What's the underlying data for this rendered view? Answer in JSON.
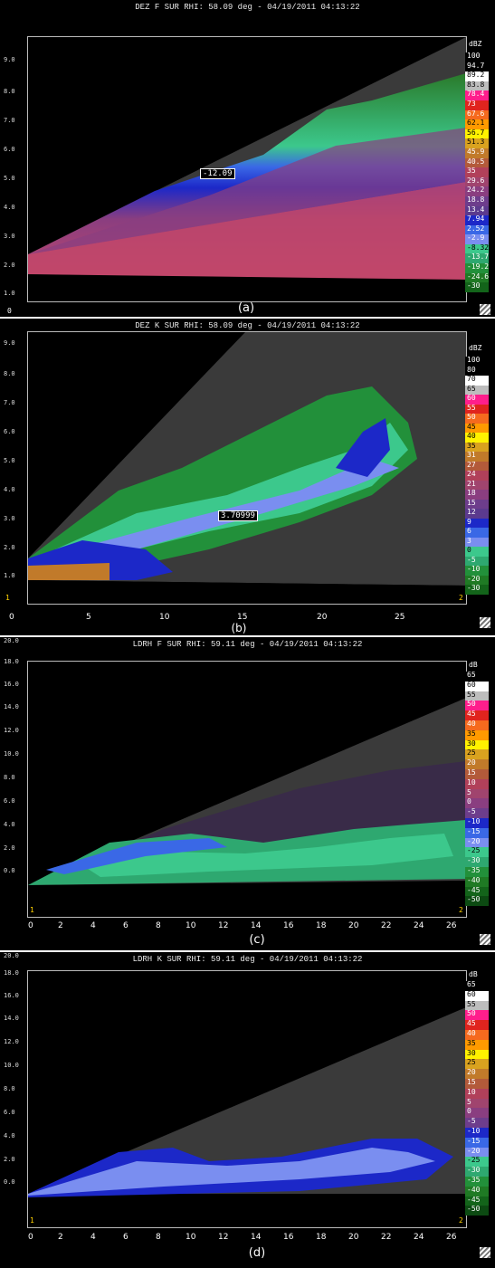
{
  "panels": [
    {
      "id": "a",
      "title": "DEZ F SUR  RHI: 58.09 deg  -  04/19/2011 04:13:22",
      "caption": "(a)",
      "unit": "dBZ",
      "y_ticks": [
        "1.0",
        "2.0",
        "3.0",
        "4.0",
        "5.0",
        "6.0",
        "7.0",
        "8.0",
        "9.0"
      ],
      "x_ticks": [],
      "probe_value": "-12.09",
      "corner_left": "0",
      "corner_right": "",
      "colorbar": [
        {
          "label": "100",
          "bg": "#000000",
          "fg": "#ffffff"
        },
        {
          "label": "94.7",
          "bg": "#000000",
          "fg": "#ffffff"
        },
        {
          "label": "89.2",
          "bg": "#ffffff",
          "fg": "#000000"
        },
        {
          "label": "83.8",
          "bg": "#bdbdbd",
          "fg": "#000000"
        },
        {
          "label": "78.4",
          "bg": "#ff1e8c",
          "fg": "#ffffff"
        },
        {
          "label": "73",
          "bg": "#e0241e",
          "fg": "#ffffff"
        },
        {
          "label": "67.6",
          "bg": "#f56a1e",
          "fg": "#ffffff"
        },
        {
          "label": "62.1",
          "bg": "#ff9a00",
          "fg": "#000000"
        },
        {
          "label": "56.7",
          "bg": "#fff200",
          "fg": "#000000"
        },
        {
          "label": "51.3",
          "bg": "#d9a21f",
          "fg": "#000000"
        },
        {
          "label": "45.9",
          "bg": "#c17a2a",
          "fg": "#ffffff"
        },
        {
          "label": "40.5",
          "bg": "#b35a3a",
          "fg": "#ffffff"
        },
        {
          "label": "35",
          "bg": "#b1405a",
          "fg": "#ffffff"
        },
        {
          "label": "29.6",
          "bg": "#a0446e",
          "fg": "#ffffff"
        },
        {
          "label": "24.2",
          "bg": "#8a3e80",
          "fg": "#ffffff"
        },
        {
          "label": "18.8",
          "bg": "#6d3d8c",
          "fg": "#ffffff"
        },
        {
          "label": "13.4",
          "bg": "#5b3a8e",
          "fg": "#ffffff"
        },
        {
          "label": "7.94",
          "bg": "#1c28c8",
          "fg": "#ffffff"
        },
        {
          "label": "2.52",
          "bg": "#3a68e6",
          "fg": "#ffffff"
        },
        {
          "label": "-2.9",
          "bg": "#7a8ef0",
          "fg": "#ffffff"
        },
        {
          "label": "-8.32",
          "bg": "#3cc88c",
          "fg": "#000000"
        },
        {
          "label": "-13.7",
          "bg": "#2ea870",
          "fg": "#ffffff"
        },
        {
          "label": "-19.2",
          "bg": "#22903a",
          "fg": "#ffffff"
        },
        {
          "label": "-24.6",
          "bg": "#1f7a24",
          "fg": "#ffffff"
        },
        {
          "label": "-30",
          "bg": "#13641a",
          "fg": "#ffffff"
        }
      ]
    },
    {
      "id": "b",
      "title": "DEZ K SUR  RHI: 58.09 deg  -  04/19/2011 04:13:22",
      "caption": "(b)",
      "unit": "dBZ",
      "y_ticks": [
        "1.0",
        "2.0",
        "3.0",
        "4.0",
        "5.0",
        "6.0",
        "7.0",
        "8.0",
        "9.0"
      ],
      "x_ticks": [
        "0",
        "5",
        "10",
        "15",
        "20",
        "25"
      ],
      "probe_value": "3.70999",
      "corner_left": "1",
      "corner_right": "2",
      "colorbar": [
        {
          "label": "100",
          "bg": "#000000",
          "fg": "#ffffff"
        },
        {
          "label": "80",
          "bg": "#000000",
          "fg": "#ffffff"
        },
        {
          "label": "70",
          "bg": "#ffffff",
          "fg": "#000000"
        },
        {
          "label": "65",
          "bg": "#bdbdbd",
          "fg": "#000000"
        },
        {
          "label": "60",
          "bg": "#ff1e8c",
          "fg": "#ffffff"
        },
        {
          "label": "55",
          "bg": "#e0241e",
          "fg": "#ffffff"
        },
        {
          "label": "50",
          "bg": "#f56a1e",
          "fg": "#ffffff"
        },
        {
          "label": "45",
          "bg": "#ff9a00",
          "fg": "#000000"
        },
        {
          "label": "40",
          "bg": "#fff200",
          "fg": "#000000"
        },
        {
          "label": "35",
          "bg": "#d9a21f",
          "fg": "#000000"
        },
        {
          "label": "31",
          "bg": "#c17a2a",
          "fg": "#ffffff"
        },
        {
          "label": "27",
          "bg": "#b35a3a",
          "fg": "#ffffff"
        },
        {
          "label": "24",
          "bg": "#b1405a",
          "fg": "#ffffff"
        },
        {
          "label": "21",
          "bg": "#a0446e",
          "fg": "#ffffff"
        },
        {
          "label": "18",
          "bg": "#8a3e80",
          "fg": "#ffffff"
        },
        {
          "label": "15",
          "bg": "#6d3d8c",
          "fg": "#ffffff"
        },
        {
          "label": "12",
          "bg": "#5b3a8e",
          "fg": "#ffffff"
        },
        {
          "label": "9",
          "bg": "#1c28c8",
          "fg": "#ffffff"
        },
        {
          "label": "6",
          "bg": "#3a68e6",
          "fg": "#ffffff"
        },
        {
          "label": "3",
          "bg": "#7a8ef0",
          "fg": "#ffffff"
        },
        {
          "label": "0",
          "bg": "#3cc88c",
          "fg": "#000000"
        },
        {
          "label": "-5",
          "bg": "#2ea870",
          "fg": "#ffffff"
        },
        {
          "label": "-10",
          "bg": "#22903a",
          "fg": "#ffffff"
        },
        {
          "label": "-20",
          "bg": "#1f7a24",
          "fg": "#ffffff"
        },
        {
          "label": "-30",
          "bg": "#13641a",
          "fg": "#ffffff"
        }
      ]
    },
    {
      "id": "c",
      "title": "LDRH F SUR  RHI: 59.11 deg  -  04/19/2011 04:13:22",
      "caption": "(c)",
      "unit": "dB",
      "y_ticks": [
        "0.0",
        "2.0",
        "4.0",
        "6.0",
        "8.0",
        "10.0",
        "12.0",
        "14.0",
        "16.0",
        "18.0",
        "20.0"
      ],
      "x_ticks": [
        "0",
        "2",
        "4",
        "6",
        "8",
        "10",
        "12",
        "14",
        "16",
        "18",
        "20",
        "22",
        "24",
        "26"
      ],
      "probe_value": "",
      "corner_left": "1",
      "corner_right": "2",
      "colorbar": [
        {
          "label": "65",
          "bg": "#000000",
          "fg": "#ffffff"
        },
        {
          "label": "60",
          "bg": "#ffffff",
          "fg": "#000000"
        },
        {
          "label": "55",
          "bg": "#bdbdbd",
          "fg": "#000000"
        },
        {
          "label": "50",
          "bg": "#ff1e8c",
          "fg": "#ffffff"
        },
        {
          "label": "45",
          "bg": "#e0241e",
          "fg": "#ffffff"
        },
        {
          "label": "40",
          "bg": "#f56a1e",
          "fg": "#ffffff"
        },
        {
          "label": "35",
          "bg": "#ff9a00",
          "fg": "#000000"
        },
        {
          "label": "30",
          "bg": "#fff200",
          "fg": "#000000"
        },
        {
          "label": "25",
          "bg": "#d9a21f",
          "fg": "#000000"
        },
        {
          "label": "20",
          "bg": "#c17a2a",
          "fg": "#ffffff"
        },
        {
          "label": "15",
          "bg": "#b35a3a",
          "fg": "#ffffff"
        },
        {
          "label": "10",
          "bg": "#b1405a",
          "fg": "#ffffff"
        },
        {
          "label": "5",
          "bg": "#a0446e",
          "fg": "#ffffff"
        },
        {
          "label": "0",
          "bg": "#8a3e80",
          "fg": "#ffffff"
        },
        {
          "label": "-5",
          "bg": "#6d3d8c",
          "fg": "#ffffff"
        },
        {
          "label": "-10",
          "bg": "#1c28c8",
          "fg": "#ffffff"
        },
        {
          "label": "-15",
          "bg": "#3a68e6",
          "fg": "#ffffff"
        },
        {
          "label": "-20",
          "bg": "#7a8ef0",
          "fg": "#ffffff"
        },
        {
          "label": "-25",
          "bg": "#3cc88c",
          "fg": "#000000"
        },
        {
          "label": "-30",
          "bg": "#2ea870",
          "fg": "#ffffff"
        },
        {
          "label": "-35",
          "bg": "#22903a",
          "fg": "#ffffff"
        },
        {
          "label": "-40",
          "bg": "#1f7a24",
          "fg": "#ffffff"
        },
        {
          "label": "-45",
          "bg": "#13641a",
          "fg": "#ffffff"
        },
        {
          "label": "-50",
          "bg": "#0c4a12",
          "fg": "#ffffff"
        }
      ]
    },
    {
      "id": "d",
      "title": "LDRH K SUR  RHI: 59.11 deg  -  04/19/2011 04:13:22",
      "caption": "(d)",
      "unit": "dB",
      "y_ticks": [
        "0.0",
        "2.0",
        "4.0",
        "6.0",
        "8.0",
        "10.0",
        "12.0",
        "14.0",
        "16.0",
        "18.0",
        "20.0"
      ],
      "x_ticks": [
        "0",
        "2",
        "4",
        "6",
        "8",
        "10",
        "12",
        "14",
        "16",
        "18",
        "20",
        "22",
        "24",
        "26"
      ],
      "probe_value": "",
      "corner_left": "1",
      "corner_right": "2",
      "colorbar": [
        {
          "label": "65",
          "bg": "#000000",
          "fg": "#ffffff"
        },
        {
          "label": "60",
          "bg": "#ffffff",
          "fg": "#000000"
        },
        {
          "label": "55",
          "bg": "#bdbdbd",
          "fg": "#000000"
        },
        {
          "label": "50",
          "bg": "#ff1e8c",
          "fg": "#ffffff"
        },
        {
          "label": "45",
          "bg": "#e0241e",
          "fg": "#ffffff"
        },
        {
          "label": "40",
          "bg": "#f56a1e",
          "fg": "#ffffff"
        },
        {
          "label": "35",
          "bg": "#ff9a00",
          "fg": "#000000"
        },
        {
          "label": "30",
          "bg": "#fff200",
          "fg": "#000000"
        },
        {
          "label": "25",
          "bg": "#d9a21f",
          "fg": "#000000"
        },
        {
          "label": "20",
          "bg": "#c17a2a",
          "fg": "#ffffff"
        },
        {
          "label": "15",
          "bg": "#b35a3a",
          "fg": "#ffffff"
        },
        {
          "label": "10",
          "bg": "#b1405a",
          "fg": "#ffffff"
        },
        {
          "label": "5",
          "bg": "#a0446e",
          "fg": "#ffffff"
        },
        {
          "label": "0",
          "bg": "#8a3e80",
          "fg": "#ffffff"
        },
        {
          "label": "-5",
          "bg": "#6d3d8c",
          "fg": "#ffffff"
        },
        {
          "label": "-10",
          "bg": "#1c28c8",
          "fg": "#ffffff"
        },
        {
          "label": "-15",
          "bg": "#3a68e6",
          "fg": "#ffffff"
        },
        {
          "label": "-20",
          "bg": "#7a8ef0",
          "fg": "#ffffff"
        },
        {
          "label": "-25",
          "bg": "#3cc88c",
          "fg": "#000000"
        },
        {
          "label": "-30",
          "bg": "#2ea870",
          "fg": "#ffffff"
        },
        {
          "label": "-35",
          "bg": "#22903a",
          "fg": "#ffffff"
        },
        {
          "label": "-40",
          "bg": "#1f7a24",
          "fg": "#ffffff"
        },
        {
          "label": "-45",
          "bg": "#13641a",
          "fg": "#ffffff"
        },
        {
          "label": "-50",
          "bg": "#0c4a12",
          "fg": "#ffffff"
        }
      ]
    }
  ]
}
